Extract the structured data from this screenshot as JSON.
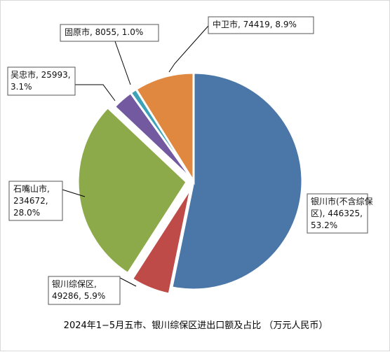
{
  "chart_data": {
    "type": "pie",
    "title": "2024年1−5月五市、银川综保区进出口额及占比 （万元人民币）",
    "unit": "万元人民币",
    "start_angle_deg": 0,
    "direction": "clockwise",
    "slices": [
      {
        "name": "银川市(不含综保区)",
        "value": 446325,
        "percent": "53.2%",
        "color": "#4A76A8",
        "exploded": false,
        "label_lines": [
          "银川市(不含综保",
          "区), 446325,",
          "53.2%"
        ]
      },
      {
        "name": "银川综保区",
        "value": 49286,
        "percent": "5.9%",
        "color": "#BE4B48",
        "exploded": true,
        "label_lines": [
          "银川综保区,",
          "49286, 5.9%"
        ]
      },
      {
        "name": "石嘴山市",
        "value": 234672,
        "percent": "28.0%",
        "color": "#8DAA4A",
        "exploded": true,
        "label_lines": [
          "石嘴山市,",
          "234672,",
          "28.0%"
        ]
      },
      {
        "name": "吴忠市",
        "value": 25993,
        "percent": "3.1%",
        "color": "#7359A0",
        "exploded": false,
        "label_lines": [
          "吴忠市, 25993,",
          "3.1%"
        ]
      },
      {
        "name": "固原市",
        "value": 8055,
        "percent": "1.0%",
        "color": "#3DA1B8",
        "exploded": false,
        "label_lines": [
          "固原市, 8055, 1.0%"
        ]
      },
      {
        "name": "中卫市",
        "value": 74419,
        "percent": "8.9%",
        "color": "#E0883F",
        "exploded": false,
        "label_lines": [
          "中卫市, 74419, 8.9%"
        ]
      }
    ]
  }
}
